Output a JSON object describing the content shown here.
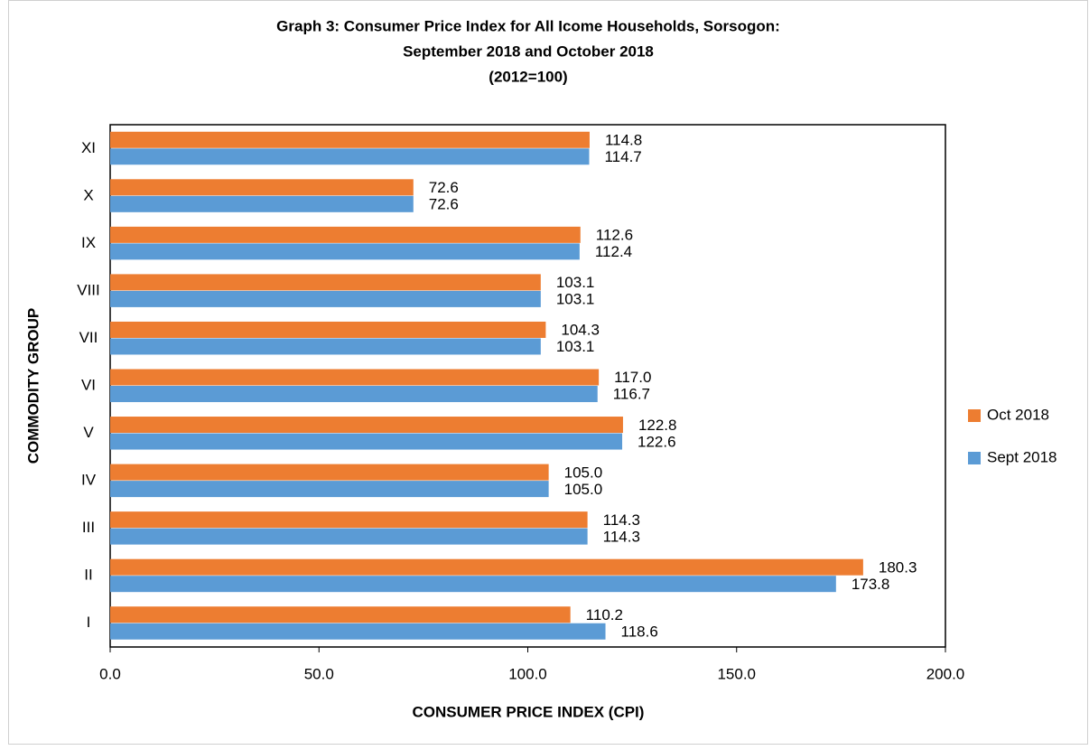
{
  "chart_data": {
    "type": "hbar",
    "title_lines": [
      "Graph 3:  Consumer Price Index for All Icome Households, Sorsogon:",
      "September 2018 and October 2018",
      "(2012=100)"
    ],
    "x_label": "CONSUMER PRICE INDEX (CPI)",
    "y_label": "COMMODITY GROUP",
    "categories": [
      "I",
      "II",
      "III",
      "IV",
      "V",
      "VI",
      "VII",
      "VIII",
      "IX",
      "X",
      "XI"
    ],
    "series": [
      {
        "name": "Oct 2018",
        "color": "#ED7D31",
        "values": [
          110.2,
          180.3,
          114.3,
          105.0,
          122.8,
          117.0,
          104.3,
          103.1,
          112.6,
          72.6,
          114.8
        ],
        "value_labels": [
          "110.2",
          "180.3",
          "114.3",
          "105.0",
          "122.8",
          "117.0",
          "104.3",
          "103.1",
          "112.6",
          "72.6",
          "114.8"
        ]
      },
      {
        "name": "Sept 2018",
        "color": "#5B9BD5",
        "values": [
          118.6,
          173.8,
          114.3,
          105.0,
          122.6,
          116.7,
          103.1,
          103.1,
          112.4,
          72.6,
          114.7
        ],
        "value_labels": [
          "118.6",
          "173.8",
          "114.3",
          "105.0",
          "122.6",
          "116.7",
          "103.1",
          "103.1",
          "112.4",
          "72.6",
          "114.7"
        ]
      }
    ],
    "xlim": [
      0,
      200
    ],
    "xticks": [
      {
        "value": 0,
        "label": "0.0"
      },
      {
        "value": 50,
        "label": "50.0"
      },
      {
        "value": 100,
        "label": "100.0"
      },
      {
        "value": 150,
        "label": "150.0"
      },
      {
        "value": 200,
        "label": "200.0"
      }
    ],
    "legend": "right"
  }
}
